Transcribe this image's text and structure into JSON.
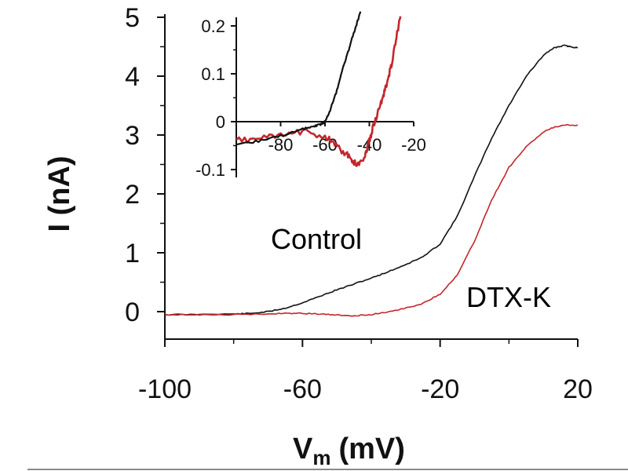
{
  "chart_data": [
    {
      "type": "line",
      "title": "",
      "xlabel": "V",
      "xlabel_subscript": "m",
      "xlabel_unit": "(mV)",
      "ylabel": "I (nA)",
      "xlim": [
        -100,
        20
      ],
      "ylim": [
        -0.5,
        5
      ],
      "xticks": [
        -100,
        -60,
        -20,
        20
      ],
      "xtick_labels": [
        "-100",
        "-60",
        "-20",
        "20"
      ],
      "yticks": [
        0,
        1,
        2,
        3,
        4,
        5
      ],
      "ytick_labels": [
        "0",
        "1",
        "2",
        "3",
        "4",
        "5"
      ],
      "series": [
        {
          "name": "Control",
          "color": "#111111",
          "x": [
            -100,
            -90,
            -80,
            -75,
            -70,
            -65,
            -60,
            -55,
            -50,
            -45,
            -40,
            -35,
            -30,
            -25,
            -20,
            -15,
            -10,
            -5,
            0,
            5,
            10,
            13,
            16,
            18,
            20
          ],
          "y": [
            -0.05,
            -0.05,
            -0.04,
            -0.03,
            0.0,
            0.06,
            0.15,
            0.26,
            0.37,
            0.47,
            0.57,
            0.68,
            0.8,
            0.93,
            1.15,
            1.62,
            2.3,
            2.95,
            3.5,
            4.0,
            4.35,
            4.48,
            4.52,
            4.5,
            4.48
          ]
        },
        {
          "name": "DTX-K",
          "color": "#c4262b",
          "x": [
            -100,
            -90,
            -80,
            -70,
            -65,
            -60,
            -55,
            -50,
            -45,
            -40,
            -35,
            -30,
            -25,
            -20,
            -15,
            -10,
            -5,
            0,
            5,
            10,
            13,
            16,
            20
          ],
          "y": [
            -0.05,
            -0.05,
            -0.05,
            -0.04,
            -0.03,
            -0.03,
            -0.04,
            -0.06,
            -0.07,
            -0.05,
            0.0,
            0.06,
            0.14,
            0.3,
            0.62,
            1.2,
            1.9,
            2.45,
            2.8,
            3.05,
            3.13,
            3.17,
            3.17
          ]
        }
      ],
      "annotations": [
        {
          "text": "Control",
          "color": "#111111"
        },
        {
          "text": "DTX-K",
          "color": "#c4262b"
        }
      ]
    },
    {
      "type": "line",
      "title": "",
      "role": "inset",
      "xlim": [
        -100,
        -20
      ],
      "ylim": [
        -0.11,
        0.22
      ],
      "xticks": [
        -80,
        -60,
        -40,
        -20
      ],
      "xtick_labels": [
        "-80",
        "-60",
        "-40",
        "-20"
      ],
      "yticks": [
        -0.1,
        0,
        0.1,
        0.2
      ],
      "ytick_labels": [
        "-0.1",
        "0",
        "0.1",
        "0.2"
      ],
      "series": [
        {
          "name": "Control",
          "color": "#111111",
          "x": [
            -100,
            -90,
            -80,
            -70,
            -65,
            -62,
            -60,
            -58,
            -55,
            -52,
            -50,
            -48,
            -46,
            -44
          ],
          "y": [
            -0.05,
            -0.04,
            -0.03,
            -0.015,
            -0.01,
            -0.005,
            0.0,
            0.02,
            0.06,
            0.11,
            0.14,
            0.17,
            0.2,
            0.23
          ]
        },
        {
          "name": "DTX-K",
          "color": "#c4262b",
          "x": [
            -100,
            -90,
            -80,
            -70,
            -60,
            -55,
            -50,
            -47,
            -45,
            -42,
            -40,
            -38,
            -36,
            -34,
            -32,
            -30,
            -28,
            -26
          ],
          "y": [
            -0.04,
            -0.035,
            -0.03,
            -0.02,
            -0.03,
            -0.05,
            -0.07,
            -0.085,
            -0.09,
            -0.07,
            -0.04,
            -0.005,
            0.02,
            0.05,
            0.08,
            0.12,
            0.17,
            0.22
          ]
        }
      ]
    }
  ]
}
